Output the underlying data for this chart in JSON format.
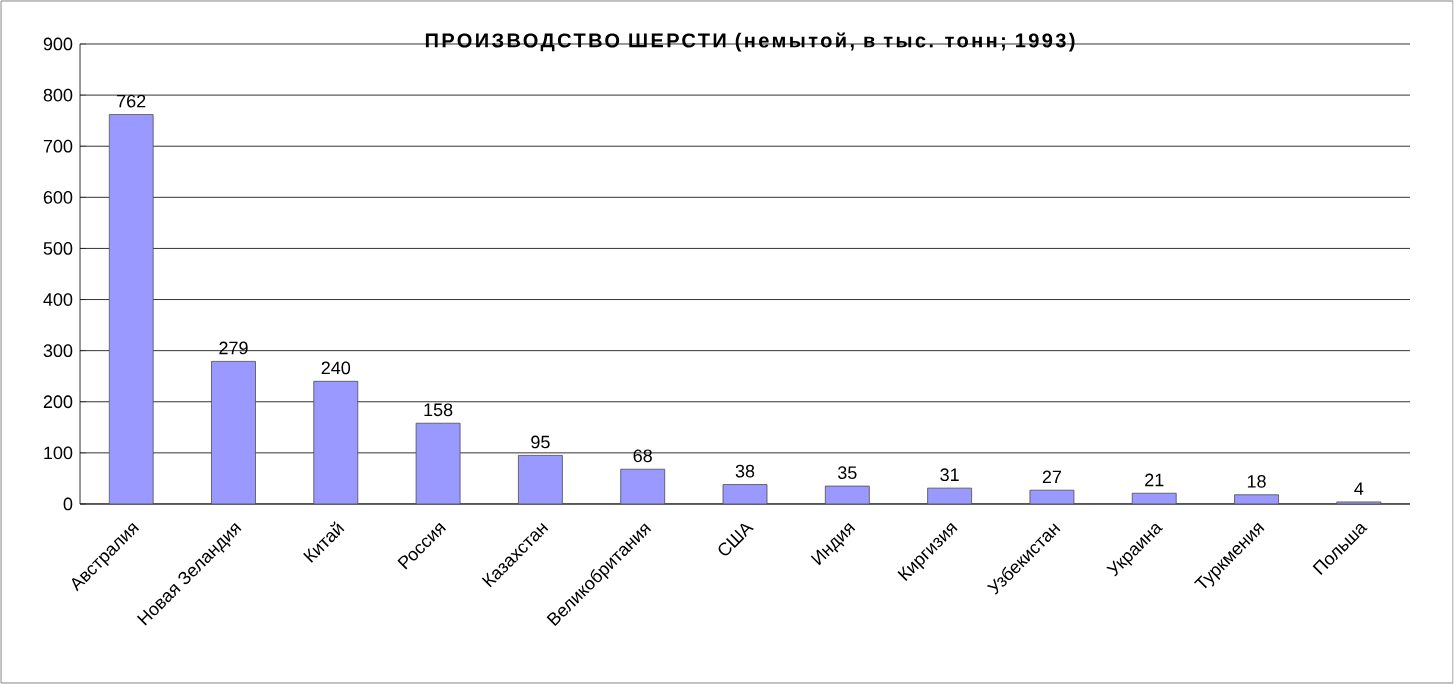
{
  "chart_data": {
    "type": "bar",
    "title": "ПРОИЗВОДСТВО ШЕРСТИ (немытой, в тыс. тонн; 1993)",
    "categories": [
      "Австралия",
      "Новая Зеландия",
      "Китай",
      "Россия",
      "Казахстан",
      "Великобритания",
      "США",
      "Индия",
      "Киргизия",
      "Узбекистан",
      "Украина",
      "Туркмения",
      "Польша"
    ],
    "values": [
      762,
      279,
      240,
      158,
      95,
      68,
      38,
      35,
      31,
      27,
      21,
      18,
      4
    ],
    "color": "#9999ff",
    "ylim": [
      0,
      900
    ],
    "yticks": [
      0,
      100,
      200,
      300,
      400,
      500,
      600,
      700,
      800,
      900
    ],
    "grid": "y",
    "data_labels": true
  }
}
